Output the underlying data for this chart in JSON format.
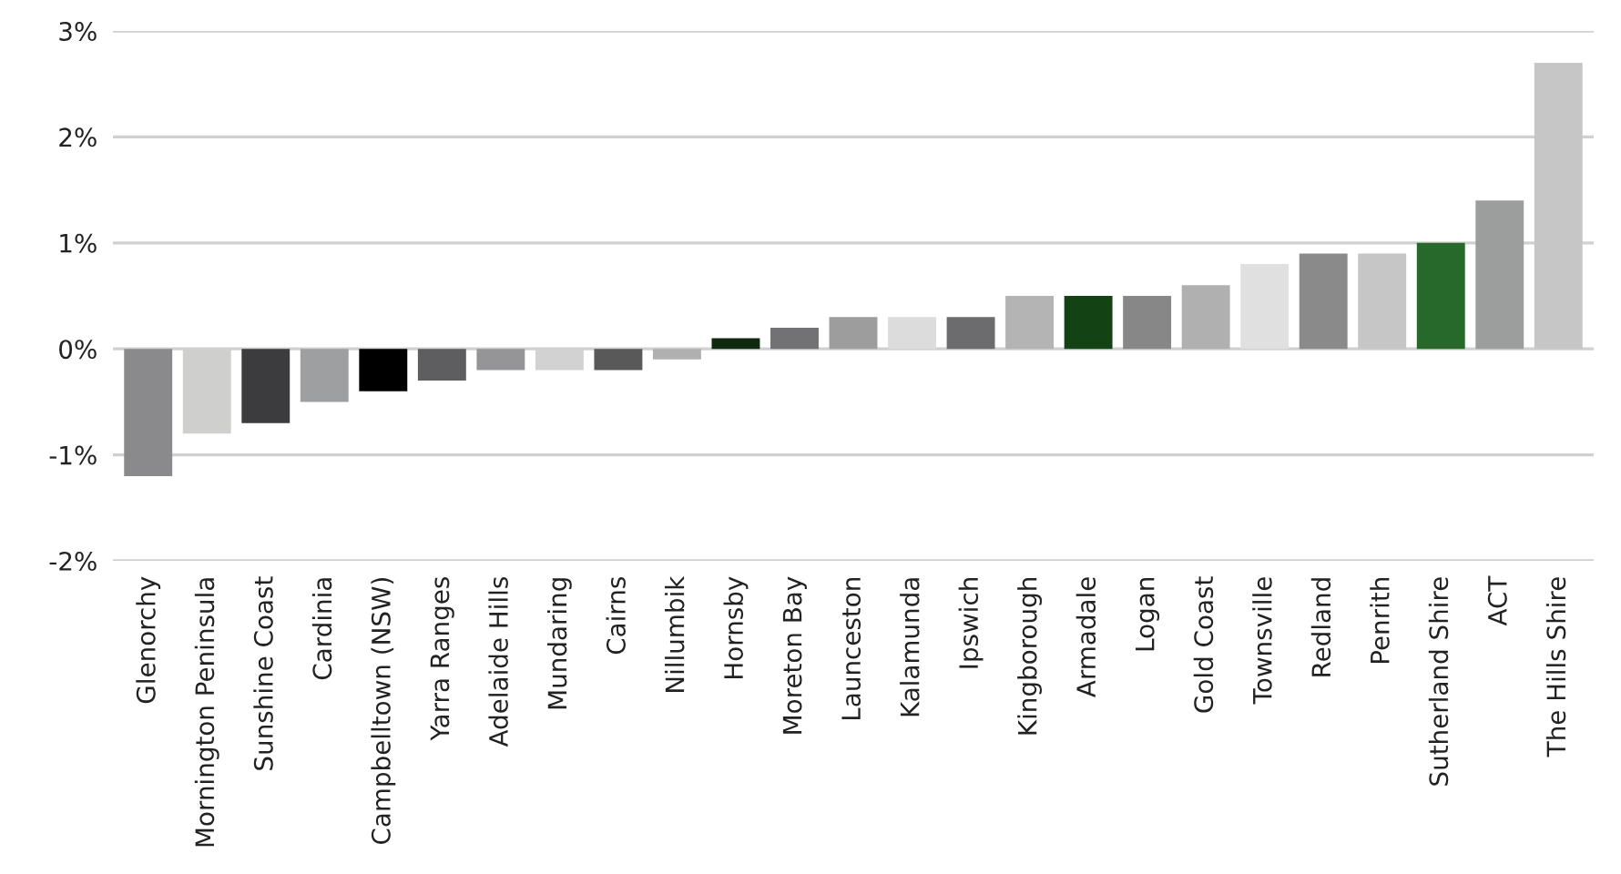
{
  "chart_data": {
    "type": "bar",
    "categories": [
      "Glenorchy",
      "Mornington Peninsula",
      "Sunshine Coast",
      "Cardinia",
      "Campbelltown (NSW)",
      "Yarra Ranges",
      "Adelaide Hills",
      "Mundaring",
      "Cairns",
      "Nillumbik",
      "Hornsby",
      "Moreton Bay",
      "Launceston",
      "Kalamunda",
      "Ipswich",
      "Kingborough",
      "Armadale",
      "Logan",
      "Gold Coast",
      "Townsville",
      "Redland",
      "Penrith",
      "Sutherland Shire",
      "ACT",
      "The Hills Shire"
    ],
    "values": [
      -1.2,
      -0.8,
      -0.7,
      -0.5,
      -0.4,
      -0.3,
      -0.2,
      -0.2,
      -0.2,
      -0.1,
      0.1,
      0.2,
      0.3,
      0.3,
      0.3,
      0.5,
      0.5,
      0.5,
      0.6,
      0.8,
      0.9,
      0.9,
      1.0,
      1.4,
      2.7
    ],
    "colors": [
      "#8a8a8c",
      "#cfd0ce",
      "#3c3c3e",
      "#9e9fa0",
      "#000000",
      "#5e5e60",
      "#959597",
      "#d2d2d3",
      "#59595a",
      "#b0b0b0",
      "#0f2a0f",
      "#727274",
      "#9d9d9e",
      "#dcdcdc",
      "#6c6c6e",
      "#b4b4b5",
      "#134214",
      "#878788",
      "#b0b0b1",
      "#e0e0e0",
      "#8a8a8b",
      "#c5c6c5",
      "#27682b",
      "#9c9d9d",
      "#c6c6c6"
    ],
    "ylim": [
      -2,
      3
    ],
    "yticks": [
      {
        "value": -2,
        "label": "-2%"
      },
      {
        "value": -1,
        "label": "-1%"
      },
      {
        "value": 0,
        "label": "0%"
      },
      {
        "value": 1,
        "label": "1%"
      },
      {
        "value": 2,
        "label": "2%"
      },
      {
        "value": 3,
        "label": "3%"
      }
    ],
    "grid": "y"
  }
}
